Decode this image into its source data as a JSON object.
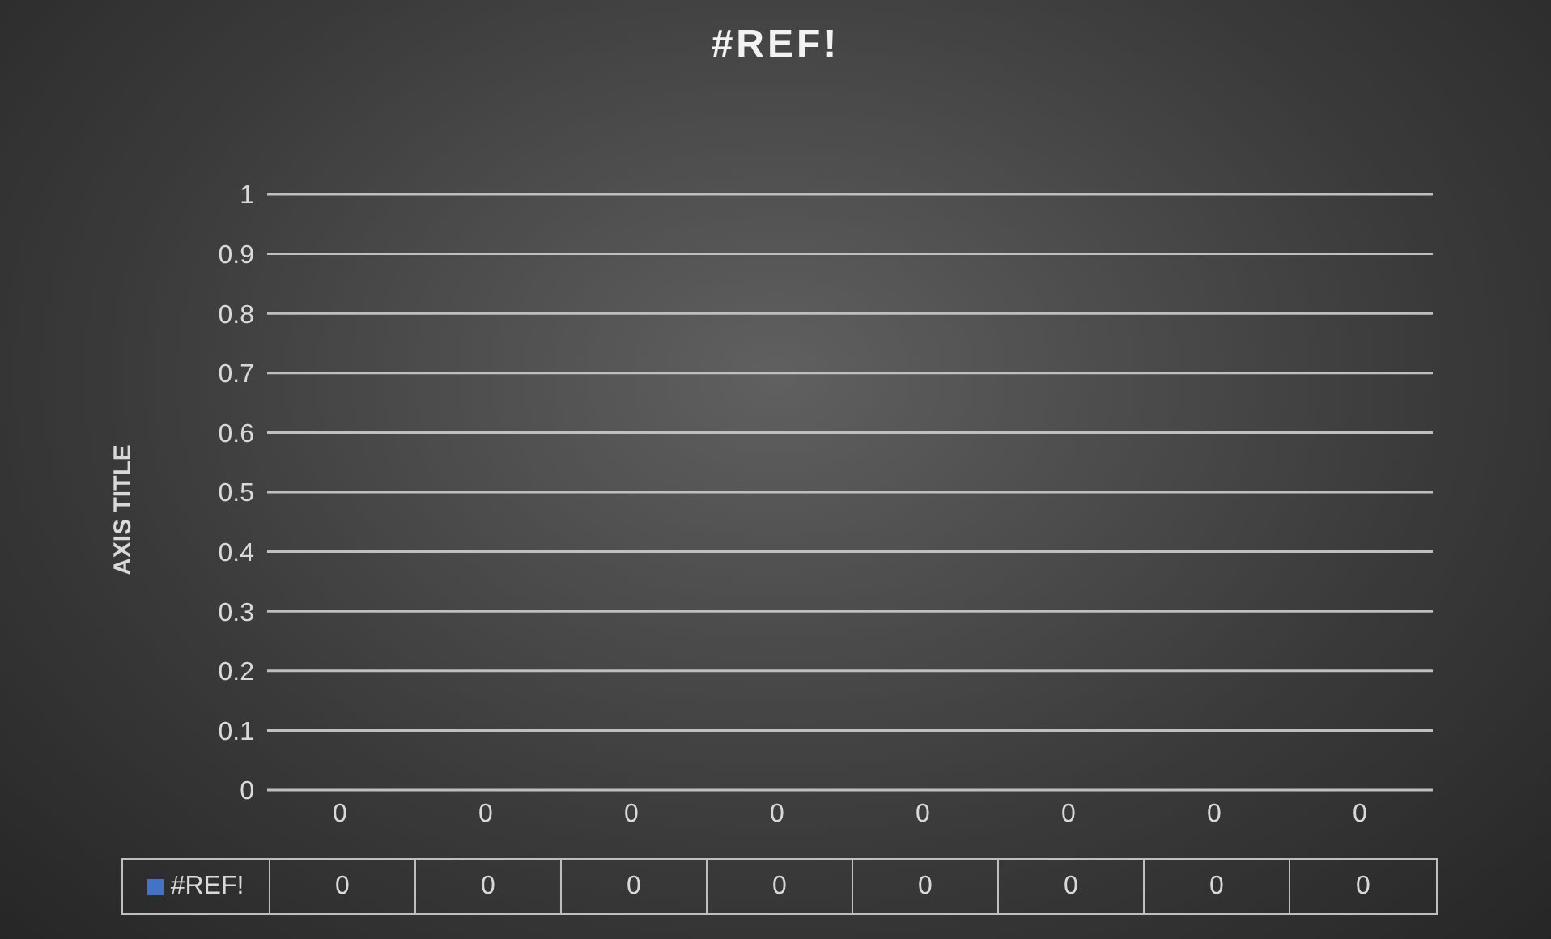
{
  "chart_data": {
    "type": "bar",
    "title": "#REF!",
    "ylabel": "AXIS TITLE",
    "categories": [
      "0",
      "0",
      "0",
      "0",
      "0",
      "0",
      "0",
      "0"
    ],
    "series": [
      {
        "name": "#REF!",
        "color": "#4472c4",
        "values": [
          0,
          0,
          0,
          0,
          0,
          0,
          0,
          0
        ]
      }
    ],
    "ylim": [
      0,
      1
    ],
    "yticks": [
      0,
      0.1,
      0.2,
      0.3,
      0.4,
      0.5,
      0.6,
      0.7,
      0.8,
      0.9,
      1
    ],
    "grid": "y",
    "data_labels": true,
    "legend": "bottom"
  }
}
